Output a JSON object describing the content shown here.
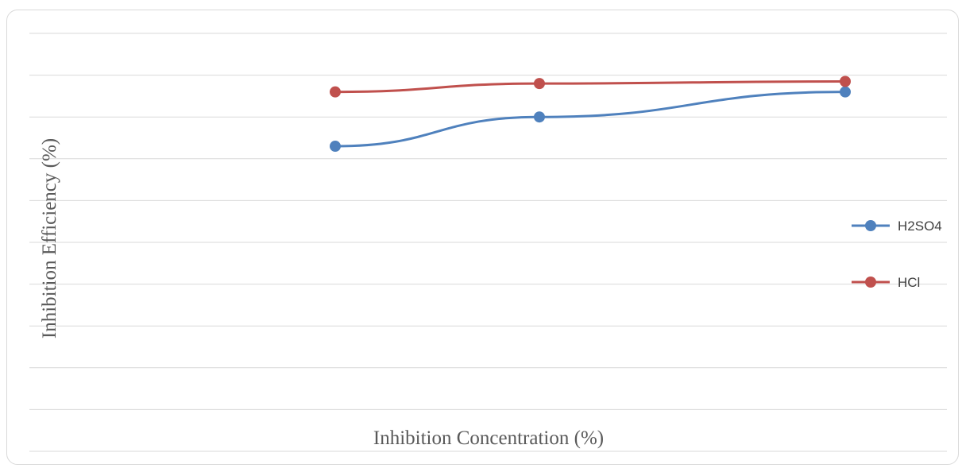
{
  "chart_data": {
    "type": "line",
    "title": "",
    "xlabel": "Inhibition Concentration (%)",
    "ylabel": "Inhibition Efficiency (%)",
    "categories": [
      "",
      "",
      ""
    ],
    "ylim": [
      0,
      100
    ],
    "grid": true,
    "legend_position": "right",
    "series": [
      {
        "name": "H2SO4",
        "color": "#4f81bd",
        "values": [
          73,
          80,
          86
        ]
      },
      {
        "name": "HCl",
        "color": "#c0504d",
        "values": [
          86,
          88,
          88.5
        ]
      }
    ]
  }
}
